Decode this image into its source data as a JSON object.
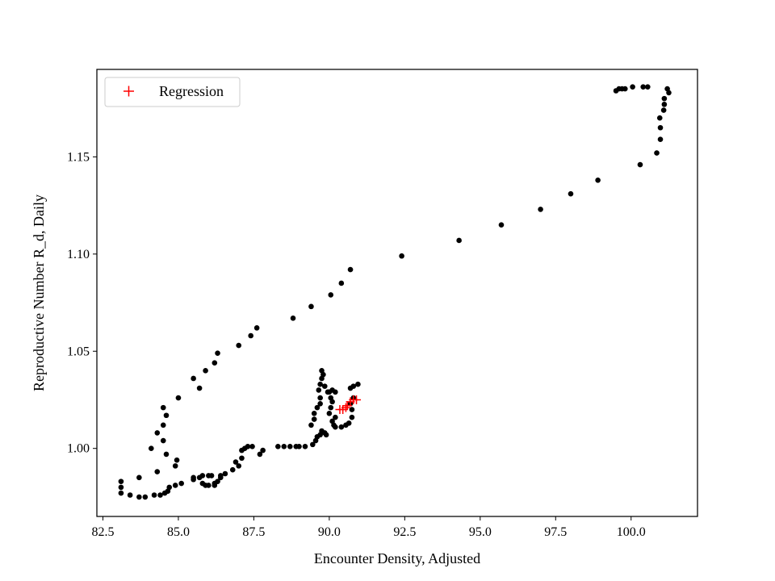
{
  "chart_data": {
    "type": "scatter",
    "title": "",
    "xlabel": "Encounter Density, Adjusted",
    "ylabel": "Reproductive Number R_d, Daily",
    "xlim": [
      82.3,
      102.2
    ],
    "ylim": [
      0.965,
      1.195
    ],
    "xticks": [
      82.5,
      85.0,
      87.5,
      90.0,
      92.5,
      95.0,
      97.5,
      100.0
    ],
    "xtick_labels": [
      "82.5",
      "85.0",
      "87.5",
      "90.0",
      "92.5",
      "95.0",
      "97.5",
      "100.0"
    ],
    "yticks": [
      1.0,
      1.05,
      1.1,
      1.15
    ],
    "ytick_labels": [
      "1.00",
      "1.05",
      "1.10",
      "1.15"
    ],
    "grid": false,
    "legend": {
      "position": "upper-left",
      "entries": [
        {
          "label": "Regression",
          "marker": "+",
          "color": "#ff0000"
        }
      ]
    },
    "series": [
      {
        "marker": "circle",
        "color": "#000000",
        "points": [
          [
            101.2,
            1.185
          ],
          [
            101.25,
            1.183
          ],
          [
            101.1,
            1.18
          ],
          [
            101.1,
            1.177
          ],
          [
            101.08,
            1.174
          ],
          [
            100.95,
            1.17
          ],
          [
            100.97,
            1.165
          ],
          [
            100.97,
            1.159
          ],
          [
            100.85,
            1.152
          ],
          [
            100.3,
            1.146
          ],
          [
            100.55,
            1.186
          ],
          [
            100.4,
            1.186
          ],
          [
            100.05,
            1.186
          ],
          [
            99.8,
            1.185
          ],
          [
            99.7,
            1.185
          ],
          [
            99.6,
            1.185
          ],
          [
            99.5,
            1.184
          ],
          [
            98.9,
            1.138
          ],
          [
            98.0,
            1.131
          ],
          [
            97.0,
            1.123
          ],
          [
            95.7,
            1.115
          ],
          [
            94.3,
            1.107
          ],
          [
            92.4,
            1.099
          ],
          [
            90.7,
            1.092
          ],
          [
            90.4,
            1.085
          ],
          [
            90.05,
            1.079
          ],
          [
            89.4,
            1.073
          ],
          [
            88.8,
            1.067
          ],
          [
            87.6,
            1.062
          ],
          [
            87.4,
            1.058
          ],
          [
            87.0,
            1.053
          ],
          [
            86.3,
            1.049
          ],
          [
            86.2,
            1.044
          ],
          [
            85.9,
            1.04
          ],
          [
            85.5,
            1.036
          ],
          [
            85.7,
            1.031
          ],
          [
            85.0,
            1.026
          ],
          [
            84.5,
            1.021
          ],
          [
            84.6,
            1.017
          ],
          [
            84.5,
            1.012
          ],
          [
            84.3,
            1.008
          ],
          [
            84.5,
            1.004
          ],
          [
            84.1,
            1.0
          ],
          [
            84.6,
            0.997
          ],
          [
            84.95,
            0.994
          ],
          [
            84.9,
            0.991
          ],
          [
            84.3,
            0.988
          ],
          [
            83.7,
            0.985
          ],
          [
            83.1,
            0.983
          ],
          [
            83.1,
            0.98
          ],
          [
            83.1,
            0.977
          ],
          [
            83.4,
            0.976
          ],
          [
            83.7,
            0.975
          ],
          [
            83.9,
            0.975
          ],
          [
            84.2,
            0.976
          ],
          [
            84.4,
            0.976
          ],
          [
            84.55,
            0.977
          ],
          [
            84.65,
            0.978
          ],
          [
            84.7,
            0.98
          ],
          [
            84.9,
            0.981
          ],
          [
            85.1,
            0.982
          ],
          [
            85.5,
            0.984
          ],
          [
            85.5,
            0.985
          ],
          [
            85.7,
            0.985
          ],
          [
            85.8,
            0.982
          ],
          [
            85.9,
            0.981
          ],
          [
            86.0,
            0.981
          ],
          [
            86.2,
            0.982
          ],
          [
            86.2,
            0.981
          ],
          [
            85.8,
            0.986
          ],
          [
            86.0,
            0.986
          ],
          [
            86.1,
            0.986
          ],
          [
            86.4,
            0.986
          ],
          [
            86.55,
            0.987
          ],
          [
            86.4,
            0.985
          ],
          [
            86.3,
            0.983
          ],
          [
            86.8,
            0.989
          ],
          [
            87.0,
            0.991
          ],
          [
            86.9,
            0.993
          ],
          [
            87.1,
            0.995
          ],
          [
            87.1,
            0.999
          ],
          [
            87.2,
            1.0
          ],
          [
            87.3,
            1.001
          ],
          [
            87.45,
            1.001
          ],
          [
            87.8,
            0.999
          ],
          [
            87.7,
            0.997
          ],
          [
            88.3,
            1.001
          ],
          [
            88.5,
            1.001
          ],
          [
            88.7,
            1.001
          ],
          [
            88.9,
            1.001
          ],
          [
            89.0,
            1.001
          ],
          [
            89.2,
            1.001
          ],
          [
            89.45,
            1.002
          ],
          [
            89.55,
            1.004
          ],
          [
            89.6,
            1.006
          ],
          [
            89.7,
            1.007
          ],
          [
            89.9,
            1.007
          ],
          [
            89.75,
            1.009
          ],
          [
            89.85,
            1.008
          ],
          [
            89.4,
            1.012
          ],
          [
            89.5,
            1.015
          ],
          [
            89.5,
            1.018
          ],
          [
            89.6,
            1.021
          ],
          [
            89.7,
            1.023
          ],
          [
            89.7,
            1.026
          ],
          [
            89.65,
            1.03
          ],
          [
            89.7,
            1.033
          ],
          [
            89.75,
            1.036
          ],
          [
            89.8,
            1.038
          ],
          [
            89.75,
            1.04
          ],
          [
            89.85,
            1.032
          ],
          [
            89.95,
            1.029
          ],
          [
            90.0,
            1.029
          ],
          [
            90.1,
            1.03
          ],
          [
            90.2,
            1.029
          ],
          [
            90.05,
            1.026
          ],
          [
            90.1,
            1.024
          ],
          [
            90.05,
            1.021
          ],
          [
            90.0,
            1.018
          ],
          [
            90.2,
            1.016
          ],
          [
            90.1,
            1.014
          ],
          [
            90.15,
            1.012
          ],
          [
            90.2,
            1.011
          ],
          [
            90.4,
            1.011
          ],
          [
            90.55,
            1.012
          ],
          [
            90.65,
            1.013
          ],
          [
            90.75,
            1.016
          ],
          [
            90.75,
            1.02
          ],
          [
            90.7,
            1.023
          ],
          [
            90.8,
            1.026
          ],
          [
            90.7,
            1.031
          ],
          [
            90.95,
            1.033
          ],
          [
            90.8,
            1.032
          ]
        ]
      },
      {
        "name": "Regression",
        "marker": "plus",
        "color": "#ff0000",
        "points": [
          [
            90.35,
            1.02
          ],
          [
            90.45,
            1.02
          ],
          [
            90.55,
            1.021
          ],
          [
            90.6,
            1.022
          ],
          [
            90.7,
            1.024
          ],
          [
            90.8,
            1.025
          ],
          [
            90.9,
            1.025
          ]
        ]
      }
    ]
  }
}
